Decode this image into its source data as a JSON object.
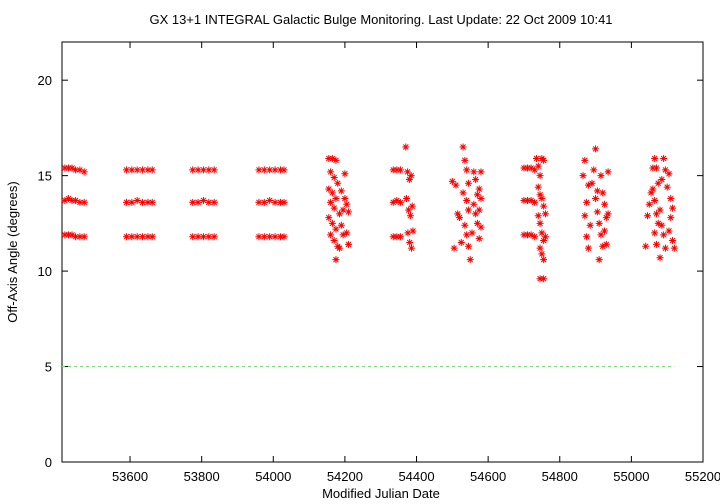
{
  "chart_data": {
    "type": "scatter",
    "title": "GX 13+1    INTEGRAL Galactic Bulge Monitoring.  Last Update: 22 Oct 2009 10:41",
    "xlabel": "Modified Julian Date",
    "ylabel": "Off-Axis Angle (degrees)",
    "xlim": [
      53410,
      55200
    ],
    "ylim": [
      0,
      22
    ],
    "xticks": [
      53600,
      53800,
      54000,
      54200,
      54400,
      54600,
      54800,
      55000,
      55200
    ],
    "yticks": [
      0,
      5,
      10,
      15,
      20
    ],
    "threshold_line": {
      "y": 5,
      "x_range": [
        53410,
        55120
      ],
      "color": "#7cd87c",
      "style": "dashed"
    },
    "series": [
      {
        "color": "#ff0000",
        "marker": "asterisk",
        "points": [
          [
            53418,
            15.4
          ],
          [
            53428,
            15.4
          ],
          [
            53438,
            15.4
          ],
          [
            53448,
            15.3
          ],
          [
            53460,
            15.3
          ],
          [
            53472,
            15.2
          ],
          [
            53418,
            13.7
          ],
          [
            53428,
            13.8
          ],
          [
            53438,
            13.7
          ],
          [
            53448,
            13.7
          ],
          [
            53460,
            13.6
          ],
          [
            53472,
            13.6
          ],
          [
            53418,
            11.9
          ],
          [
            53428,
            11.9
          ],
          [
            53438,
            11.9
          ],
          [
            53448,
            11.8
          ],
          [
            53460,
            11.8
          ],
          [
            53472,
            11.8
          ],
          [
            53590,
            15.3
          ],
          [
            53605,
            15.3
          ],
          [
            53620,
            15.3
          ],
          [
            53635,
            15.3
          ],
          [
            53650,
            15.3
          ],
          [
            53662,
            15.3
          ],
          [
            53590,
            13.6
          ],
          [
            53605,
            13.6
          ],
          [
            53620,
            13.7
          ],
          [
            53635,
            13.6
          ],
          [
            53650,
            13.6
          ],
          [
            53662,
            13.6
          ],
          [
            53590,
            11.8
          ],
          [
            53605,
            11.8
          ],
          [
            53620,
            11.8
          ],
          [
            53635,
            11.8
          ],
          [
            53650,
            11.8
          ],
          [
            53662,
            11.8
          ],
          [
            53775,
            15.3
          ],
          [
            53790,
            15.3
          ],
          [
            53805,
            15.3
          ],
          [
            53820,
            15.3
          ],
          [
            53835,
            15.3
          ],
          [
            53775,
            13.6
          ],
          [
            53790,
            13.6
          ],
          [
            53805,
            13.7
          ],
          [
            53820,
            13.6
          ],
          [
            53835,
            13.6
          ],
          [
            53775,
            11.8
          ],
          [
            53790,
            11.8
          ],
          [
            53805,
            11.8
          ],
          [
            53820,
            11.8
          ],
          [
            53835,
            11.8
          ],
          [
            53960,
            15.3
          ],
          [
            53975,
            15.3
          ],
          [
            53990,
            15.3
          ],
          [
            54005,
            15.3
          ],
          [
            54020,
            15.3
          ],
          [
            54030,
            15.3
          ],
          [
            53960,
            13.6
          ],
          [
            53975,
            13.6
          ],
          [
            53990,
            13.7
          ],
          [
            54005,
            13.6
          ],
          [
            54020,
            13.6
          ],
          [
            54030,
            13.6
          ],
          [
            53960,
            11.8
          ],
          [
            53975,
            11.8
          ],
          [
            53990,
            11.8
          ],
          [
            54005,
            11.8
          ],
          [
            54020,
            11.8
          ],
          [
            54030,
            11.8
          ],
          [
            54155,
            15.9
          ],
          [
            54165,
            15.9
          ],
          [
            54175,
            15.8
          ],
          [
            54160,
            15.2
          ],
          [
            54170,
            14.9
          ],
          [
            54180,
            14.6
          ],
          [
            54155,
            14.3
          ],
          [
            54165,
            14.1
          ],
          [
            54175,
            13.8
          ],
          [
            54160,
            13.6
          ],
          [
            54170,
            13.3
          ],
          [
            54185,
            13.0
          ],
          [
            54155,
            12.8
          ],
          [
            54165,
            12.5
          ],
          [
            54175,
            12.2
          ],
          [
            54160,
            11.9
          ],
          [
            54170,
            11.6
          ],
          [
            54180,
            11.3
          ],
          [
            54175,
            10.6
          ],
          [
            54190,
            12.4
          ],
          [
            54195,
            13.2
          ],
          [
            54200,
            15.1
          ],
          [
            54205,
            12.0
          ],
          [
            54210,
            11.4
          ],
          [
            54190,
            14.2
          ],
          [
            54200,
            13.8
          ],
          [
            54205,
            13.5
          ],
          [
            54185,
            11.2
          ],
          [
            54195,
            11.9
          ],
          [
            54210,
            13.1
          ],
          [
            54335,
            15.3
          ],
          [
            54345,
            15.3
          ],
          [
            54355,
            15.3
          ],
          [
            54335,
            13.6
          ],
          [
            54345,
            13.7
          ],
          [
            54355,
            13.6
          ],
          [
            54335,
            11.8
          ],
          [
            54345,
            11.8
          ],
          [
            54355,
            11.8
          ],
          [
            54370,
            16.5
          ],
          [
            54375,
            15.2
          ],
          [
            54380,
            14.8
          ],
          [
            54385,
            15.0
          ],
          [
            54372,
            13.8
          ],
          [
            54378,
            13.2
          ],
          [
            54383,
            12.9
          ],
          [
            54388,
            13.4
          ],
          [
            54376,
            12.0
          ],
          [
            54381,
            11.5
          ],
          [
            54386,
            11.2
          ],
          [
            54390,
            12.1
          ],
          [
            54500,
            14.7
          ],
          [
            54510,
            14.5
          ],
          [
            54515,
            13.0
          ],
          [
            54520,
            12.8
          ],
          [
            54505,
            11.2
          ],
          [
            54525,
            11.5
          ],
          [
            54530,
            16.5
          ],
          [
            54535,
            15.8
          ],
          [
            54540,
            15.3
          ],
          [
            54545,
            14.6
          ],
          [
            54530,
            14.1
          ],
          [
            54540,
            13.7
          ],
          [
            54545,
            13.2
          ],
          [
            54535,
            12.4
          ],
          [
            54540,
            11.9
          ],
          [
            54545,
            11.3
          ],
          [
            54550,
            10.6
          ],
          [
            54555,
            12.0
          ],
          [
            54560,
            15.2
          ],
          [
            54565,
            14.8
          ],
          [
            54570,
            14.0
          ],
          [
            54560,
            13.5
          ],
          [
            54565,
            13.0
          ],
          [
            54570,
            12.5
          ],
          [
            54575,
            14.3
          ],
          [
            54580,
            13.8
          ],
          [
            54575,
            13.2
          ],
          [
            54580,
            12.3
          ],
          [
            54575,
            11.7
          ],
          [
            54580,
            15.2
          ],
          [
            54700,
            15.4
          ],
          [
            54710,
            15.4
          ],
          [
            54720,
            15.4
          ],
          [
            54730,
            15.3
          ],
          [
            54700,
            13.7
          ],
          [
            54710,
            13.7
          ],
          [
            54720,
            13.7
          ],
          [
            54730,
            13.6
          ],
          [
            54700,
            11.9
          ],
          [
            54710,
            11.9
          ],
          [
            54720,
            11.9
          ],
          [
            54730,
            11.8
          ],
          [
            54735,
            15.9
          ],
          [
            54740,
            15.5
          ],
          [
            54745,
            15.0
          ],
          [
            54750,
            15.9
          ],
          [
            54755,
            15.8
          ],
          [
            54740,
            14.4
          ],
          [
            54745,
            14.0
          ],
          [
            54750,
            13.8
          ],
          [
            54755,
            13.4
          ],
          [
            54740,
            12.9
          ],
          [
            54745,
            12.5
          ],
          [
            54750,
            12.0
          ],
          [
            54755,
            11.6
          ],
          [
            54745,
            11.2
          ],
          [
            54750,
            10.9
          ],
          [
            54755,
            10.6
          ],
          [
            54745,
            9.6
          ],
          [
            54755,
            9.6
          ],
          [
            54760,
            13.0
          ],
          [
            54760,
            11.8
          ],
          [
            54865,
            15.0
          ],
          [
            54870,
            15.8
          ],
          [
            54875,
            13.6
          ],
          [
            54880,
            14.5
          ],
          [
            54870,
            12.9
          ],
          [
            54875,
            11.8
          ],
          [
            54880,
            11.2
          ],
          [
            54885,
            12.4
          ],
          [
            54890,
            14.6
          ],
          [
            54895,
            15.3
          ],
          [
            54900,
            16.4
          ],
          [
            54905,
            14.2
          ],
          [
            54900,
            13.8
          ],
          [
            54905,
            13.1
          ],
          [
            54910,
            12.5
          ],
          [
            54915,
            11.9
          ],
          [
            54920,
            11.3
          ],
          [
            54910,
            10.6
          ],
          [
            54915,
            15.0
          ],
          [
            54920,
            14.1
          ],
          [
            54925,
            13.5
          ],
          [
            54930,
            12.8
          ],
          [
            54925,
            12.1
          ],
          [
            54930,
            11.4
          ],
          [
            54935,
            15.2
          ],
          [
            54935,
            13.0
          ],
          [
            55040,
            11.3
          ],
          [
            55045,
            12.9
          ],
          [
            55050,
            13.5
          ],
          [
            55055,
            14.1
          ],
          [
            55060,
            15.4
          ],
          [
            55065,
            15.9
          ],
          [
            55070,
            15.4
          ],
          [
            55075,
            14.6
          ],
          [
            55060,
            14.3
          ],
          [
            55065,
            13.7
          ],
          [
            55070,
            13.0
          ],
          [
            55075,
            12.5
          ],
          [
            55065,
            12.0
          ],
          [
            55070,
            11.4
          ],
          [
            55080,
            10.7
          ],
          [
            55080,
            13.2
          ],
          [
            55085,
            14.8
          ],
          [
            55090,
            15.9
          ],
          [
            55095,
            15.3
          ],
          [
            55085,
            12.4
          ],
          [
            55090,
            11.9
          ],
          [
            55095,
            11.2
          ],
          [
            55100,
            14.4
          ],
          [
            55105,
            15.1
          ],
          [
            55110,
            12.8
          ],
          [
            55115,
            13.3
          ],
          [
            55115,
            11.6
          ],
          [
            55120,
            11.2
          ],
          [
            55105,
            12.1
          ],
          [
            55110,
            13.8
          ]
        ]
      }
    ]
  }
}
